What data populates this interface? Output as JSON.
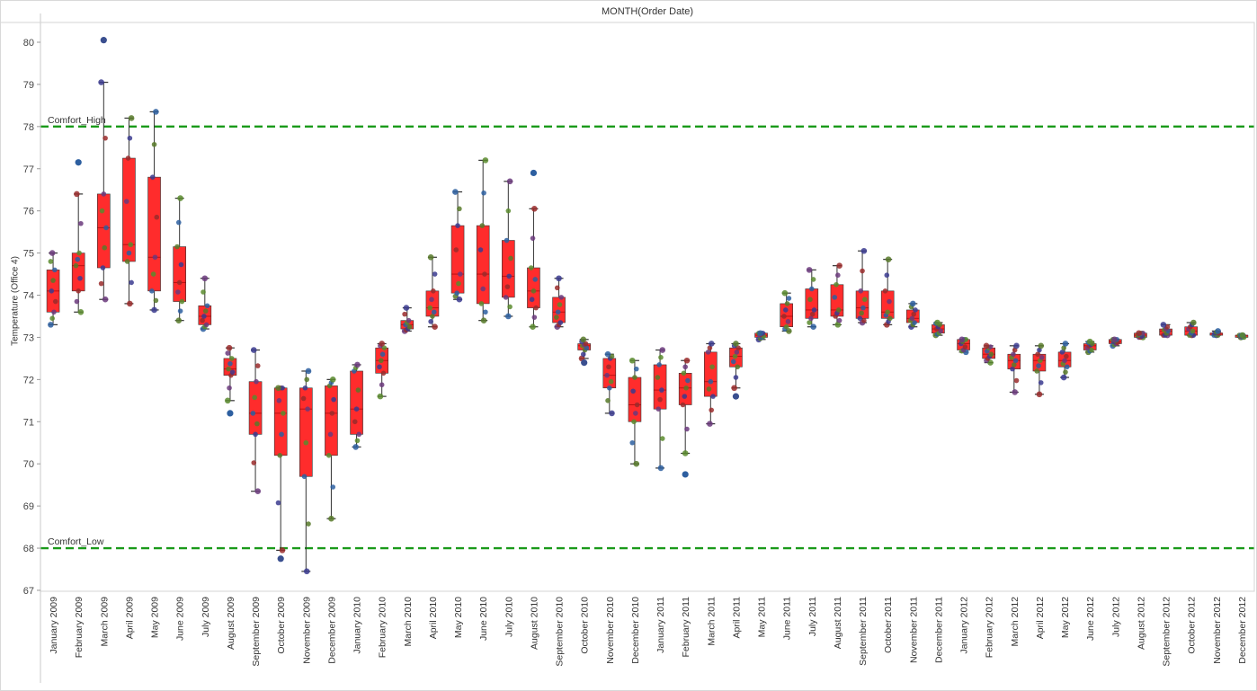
{
  "chart_data": {
    "type": "box",
    "title": "MONTH(Order Date)",
    "ylabel": "Temperature (Office 4)",
    "ylim": [
      66.7,
      80.4
    ],
    "yticks": [
      67,
      68,
      69,
      70,
      71,
      72,
      73,
      74,
      75,
      76,
      77,
      78,
      79,
      80
    ],
    "reference_lines": [
      {
        "label": "Comfort_High",
        "value": 78,
        "color": "#1a9a1a"
      },
      {
        "label": "Comfort_Low",
        "value": 68,
        "color": "#1a9a1a"
      }
    ],
    "box_color": "#ff1a1a",
    "categories": [
      "January 2009",
      "February 2009",
      "March 2009",
      "April 2009",
      "May 2009",
      "June 2009",
      "July 2009",
      "August 2009",
      "September 2009",
      "October 2009",
      "November 2009",
      "December 2009",
      "January 2010",
      "February 2010",
      "March 2010",
      "April 2010",
      "May 2010",
      "June 2010",
      "July 2010",
      "August 2010",
      "September 2010",
      "October 2010",
      "November 2010",
      "December 2010",
      "January 2011",
      "February 2011",
      "March 2011",
      "April 2011",
      "May 2011",
      "June 2011",
      "July 2011",
      "August 2011",
      "September 2011",
      "October 2011",
      "November 2011",
      "December 2011",
      "January 2012",
      "February 2012",
      "March 2012",
      "April 2012",
      "May 2012",
      "June 2012",
      "July 2012",
      "August 2012",
      "September 2012",
      "October 2012",
      "November 2012",
      "December 2012"
    ],
    "boxes": [
      [
        73.3,
        73.6,
        74.1,
        74.6,
        75.0
      ],
      [
        73.6,
        74.1,
        74.7,
        75.0,
        76.4
      ],
      [
        73.9,
        74.65,
        75.6,
        76.4,
        79.05
      ],
      [
        73.8,
        74.8,
        75.2,
        77.25,
        78.2
      ],
      [
        73.65,
        74.1,
        74.9,
        76.8,
        78.35
      ],
      [
        73.4,
        73.85,
        74.3,
        75.15,
        76.3
      ],
      [
        73.2,
        73.3,
        73.5,
        73.75,
        74.4
      ],
      [
        71.5,
        72.1,
        72.25,
        72.5,
        72.75
      ],
      [
        69.35,
        70.7,
        71.2,
        71.95,
        72.7
      ],
      [
        67.95,
        70.2,
        71.2,
        71.8,
        71.8
      ],
      [
        67.45,
        69.7,
        71.3,
        71.8,
        72.2
      ],
      [
        68.7,
        70.2,
        71.2,
        71.85,
        72.0
      ],
      [
        70.4,
        70.7,
        71.3,
        72.2,
        72.35
      ],
      [
        71.6,
        72.15,
        72.45,
        72.75,
        72.85
      ],
      [
        73.15,
        73.2,
        73.3,
        73.4,
        73.7
      ],
      [
        73.25,
        73.5,
        73.7,
        74.1,
        74.9
      ],
      [
        73.9,
        74.05,
        74.5,
        75.65,
        76.45
      ],
      [
        73.4,
        73.8,
        74.5,
        75.65,
        77.2
      ],
      [
        73.5,
        73.95,
        74.45,
        75.3,
        76.7
      ],
      [
        73.25,
        73.7,
        74.1,
        74.65,
        76.05
      ],
      [
        73.25,
        73.35,
        73.6,
        73.95,
        74.4
      ],
      [
        72.5,
        72.7,
        72.8,
        72.85,
        72.95
      ],
      [
        71.2,
        71.8,
        72.1,
        72.5,
        72.6
      ],
      [
        70.0,
        71.0,
        71.4,
        72.05,
        72.45
      ],
      [
        69.9,
        71.3,
        71.75,
        72.35,
        72.7
      ],
      [
        70.25,
        71.4,
        71.8,
        72.15,
        72.45
      ],
      [
        70.95,
        71.6,
        71.95,
        72.65,
        72.85
      ],
      [
        71.8,
        72.3,
        72.55,
        72.75,
        72.85
      ],
      [
        72.95,
        73.0,
        73.05,
        73.1,
        73.1
      ],
      [
        73.15,
        73.25,
        73.5,
        73.8,
        74.05
      ],
      [
        73.25,
        73.45,
        73.65,
        74.15,
        74.6
      ],
      [
        73.3,
        73.5,
        73.65,
        74.25,
        74.7
      ],
      [
        73.35,
        73.45,
        73.7,
        74.1,
        75.05
      ],
      [
        73.3,
        73.45,
        73.6,
        74.1,
        74.85
      ],
      [
        73.25,
        73.35,
        73.45,
        73.65,
        73.8
      ],
      [
        73.05,
        73.1,
        73.2,
        73.3,
        73.35
      ],
      [
        72.65,
        72.7,
        72.85,
        72.95,
        72.95
      ],
      [
        72.4,
        72.5,
        72.6,
        72.75,
        72.8
      ],
      [
        71.7,
        72.25,
        72.45,
        72.6,
        72.8
      ],
      [
        71.65,
        72.2,
        72.45,
        72.6,
        72.8
      ],
      [
        72.05,
        72.3,
        72.45,
        72.65,
        72.85
      ],
      [
        72.65,
        72.7,
        72.8,
        72.85,
        72.9
      ],
      [
        72.8,
        72.85,
        72.9,
        72.95,
        72.95
      ],
      [
        73.0,
        73.0,
        73.05,
        73.1,
        73.1
      ],
      [
        73.05,
        73.05,
        73.15,
        73.2,
        73.3
      ],
      [
        73.05,
        73.05,
        73.15,
        73.25,
        73.35
      ],
      [
        73.05,
        73.05,
        73.1,
        73.1,
        73.15
      ],
      [
        73.0,
        73.0,
        73.05,
        73.05,
        73.05
      ]
    ],
    "outliers": [
      {
        "cat": 1,
        "y": 77.15
      },
      {
        "cat": 2,
        "y": 80.05
      },
      {
        "cat": 7,
        "y": 71.2
      },
      {
        "cat": 9,
        "y": 67.75
      },
      {
        "cat": 19,
        "y": 76.9
      },
      {
        "cat": 21,
        "y": 72.4
      },
      {
        "cat": 25,
        "y": 69.75
      },
      {
        "cat": 27,
        "y": 71.6
      }
    ],
    "grid": false,
    "legend": "none"
  }
}
